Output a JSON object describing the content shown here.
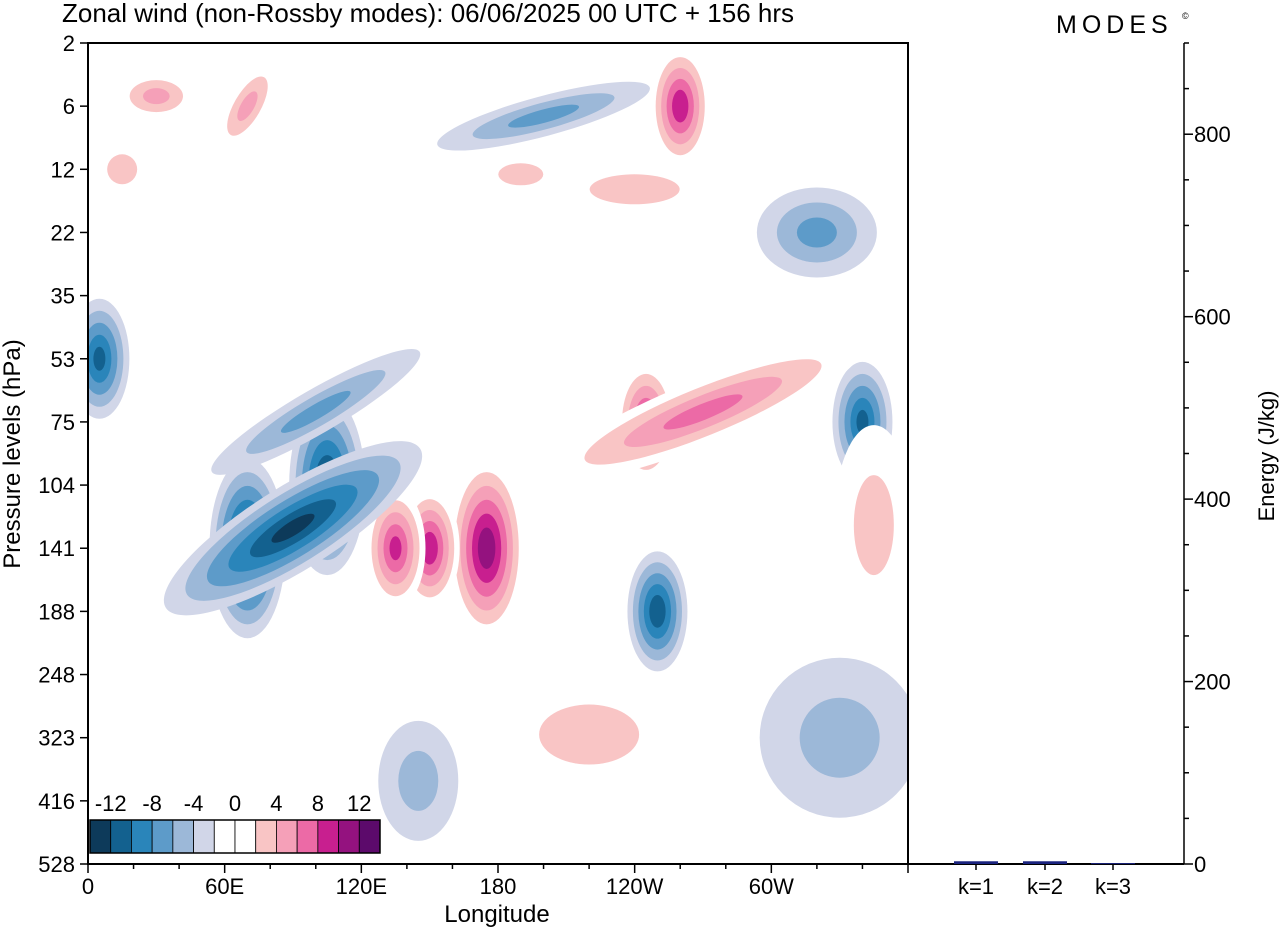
{
  "title": "Zonal wind (non-Rossby modes):  06/06/2025  00 UTC  + 156 hrs",
  "brand": "MODES",
  "brand_mark": "©",
  "chart_data": [
    {
      "type": "heatmap",
      "title": "Zonal wind (non-Rossby modes):  06/06/2025  00 UTC  + 156 hrs",
      "xlabel": "Longitude",
      "ylabel": "Pressure levels (hPa)",
      "x_ticks": [
        "0",
        "60E",
        "120E",
        "180",
        "120W",
        "60W"
      ],
      "x_tick_values": [
        0,
        60,
        120,
        180,
        240,
        300
      ],
      "xlim": [
        0,
        360
      ],
      "y_ticks": [
        "2",
        "6",
        "12",
        "22",
        "35",
        "53",
        "75",
        "104",
        "141",
        "188",
        "248",
        "323",
        "416",
        "528"
      ],
      "colorbar": {
        "labels": [
          "-12",
          "-8",
          "-4",
          "0",
          "4",
          "8",
          "12"
        ],
        "levels": [
          -14,
          -12,
          -10,
          -8,
          -6,
          -4,
          -2,
          2,
          4,
          6,
          8,
          10,
          12,
          14
        ],
        "colors": [
          "#0d3a5a",
          "#13618f",
          "#2a85ba",
          "#5d9bc9",
          "#9cb8d8",
          "#d1d6e8",
          "#ffffff",
          "#ffffff",
          "#f9c5c5",
          "#f5a0b8",
          "#ec6aa6",
          "#c81f8f",
          "#94127f",
          "#5c0a6b"
        ]
      },
      "features": [
        {
          "lon": 175,
          "level": "141",
          "value": 13
        },
        {
          "lon": 150,
          "level": "141",
          "value": 11
        },
        {
          "lon": 135,
          "level": "141",
          "value": 10
        },
        {
          "lon": 70,
          "level": "141",
          "value": -13
        },
        {
          "lon": 105,
          "level": "104",
          "value": -12
        },
        {
          "lon": 250,
          "level": "188",
          "value": -11
        },
        {
          "lon": 245,
          "level": "75",
          "value": 10
        },
        {
          "lon": 340,
          "level": "75",
          "value": -10
        },
        {
          "lon": 5,
          "level": "53",
          "value": -10
        },
        {
          "lon": 260,
          "level": "6",
          "value": 11
        }
      ]
    },
    {
      "type": "bar",
      "ylabel": "Energy (J/kg)",
      "categories": [
        "k=1",
        "k=2",
        "k=3"
      ],
      "values": [
        3,
        3,
        1
      ],
      "ylim": [
        0,
        900
      ],
      "y_ticks": [
        0,
        200,
        400,
        600,
        800
      ]
    }
  ]
}
